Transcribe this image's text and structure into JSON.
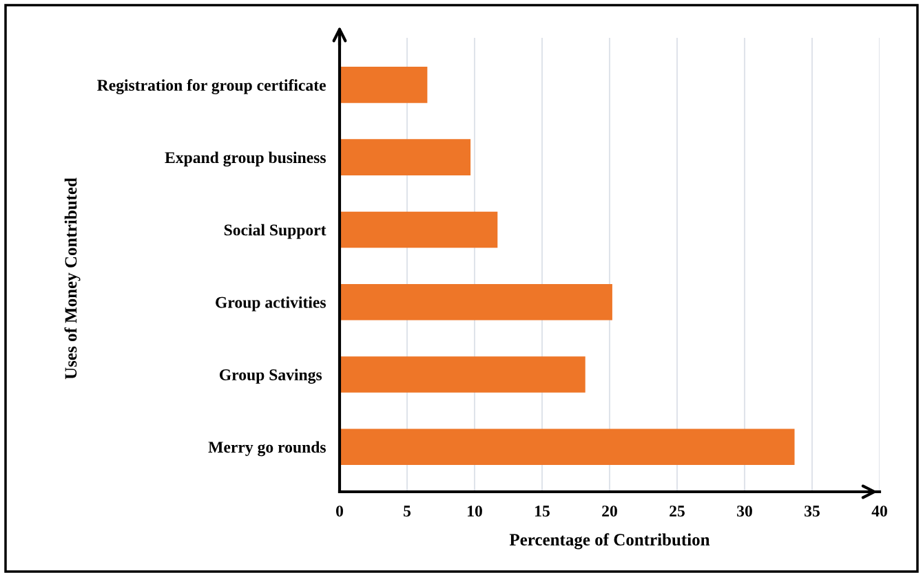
{
  "chart_data": {
    "type": "bar",
    "orientation": "horizontal",
    "categories": [
      "Registration for group certificate",
      "Expand group business",
      "Social Support",
      "Group activities",
      "Group Savings ",
      "Merry go rounds"
    ],
    "values": [
      6.5,
      9.7,
      11.7,
      20.2,
      18.2,
      33.7
    ],
    "color": "#ee7628",
    "xlabel": "Percentage of Contribution",
    "ylabel": "Uses of Money Contributed",
    "xlim": [
      0,
      40
    ],
    "xticks": [
      0,
      5,
      10,
      15,
      20,
      25,
      30,
      35,
      40
    ],
    "grid": "x"
  }
}
